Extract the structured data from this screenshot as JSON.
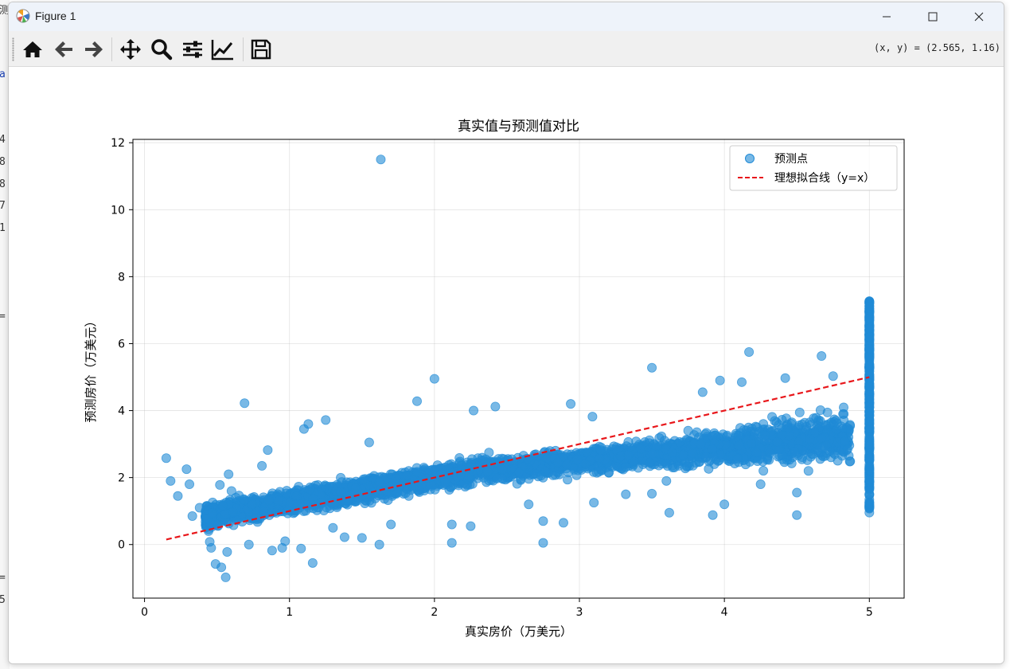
{
  "window": {
    "title": "Figure 1",
    "coords_readout": "(x, y) = (2.565, 1.16)"
  },
  "toolbar": {
    "tools": [
      "home-icon",
      "back-icon",
      "forward-icon",
      "pan-icon",
      "zoom-icon",
      "configure-subplots-icon",
      "edit-axis-icon",
      "save-icon"
    ]
  },
  "background_fragments": [
    "测",
    "a",
    "4",
    "8",
    "8",
    "7",
    "1",
    "=",
    "=",
    "5"
  ],
  "chart_data": {
    "type": "scatter",
    "title": "真实值与预测值对比",
    "xlabel": "真实房价（万美元）",
    "ylabel": "预测房价（万美元）",
    "xlim": [
      -0.08,
      5.24
    ],
    "ylim": [
      -1.6,
      12.1
    ],
    "xticks": [
      0,
      1,
      2,
      3,
      4,
      5
    ],
    "yticks": [
      0,
      2,
      4,
      6,
      8,
      10,
      12
    ],
    "grid": true,
    "legend_position": "top-right",
    "colors": {
      "points": "#1f8ad6",
      "ideal_line": "#e8161a"
    },
    "series": [
      {
        "name": "预测点",
        "type": "scatter",
        "points": [
          [
            0.15,
            2.58
          ],
          [
            0.18,
            1.9
          ],
          [
            0.23,
            1.45
          ],
          [
            0.29,
            2.25
          ],
          [
            0.31,
            1.8
          ],
          [
            0.33,
            0.85
          ],
          [
            0.38,
            1.1
          ],
          [
            0.45,
            0.08
          ],
          [
            0.46,
            -0.1
          ],
          [
            0.49,
            -0.58
          ],
          [
            0.53,
            -0.68
          ],
          [
            0.56,
            -0.98
          ],
          [
            0.57,
            -0.22
          ],
          [
            0.52,
            1.78
          ],
          [
            0.58,
            2.1
          ],
          [
            0.6,
            1.6
          ],
          [
            0.63,
            1.4
          ],
          [
            0.69,
            4.22
          ],
          [
            0.72,
            0.0
          ],
          [
            0.81,
            2.35
          ],
          [
            0.85,
            2.82
          ],
          [
            0.88,
            -0.18
          ],
          [
            0.95,
            -0.1
          ],
          [
            0.97,
            0.1
          ],
          [
            1.08,
            -0.12
          ],
          [
            1.1,
            3.45
          ],
          [
            1.13,
            3.6
          ],
          [
            1.16,
            -0.55
          ],
          [
            1.25,
            3.72
          ],
          [
            1.3,
            0.5
          ],
          [
            1.38,
            0.22
          ],
          [
            1.5,
            0.2
          ],
          [
            1.55,
            3.05
          ],
          [
            1.63,
            11.5
          ],
          [
            1.62,
            0.0
          ],
          [
            1.7,
            0.6
          ],
          [
            1.88,
            4.28
          ],
          [
            2.0,
            4.95
          ],
          [
            2.12,
            0.05
          ],
          [
            2.12,
            0.6
          ],
          [
            2.25,
            0.55
          ],
          [
            2.27,
            4.0
          ],
          [
            2.42,
            4.12
          ],
          [
            2.65,
            1.2
          ],
          [
            2.75,
            0.05
          ],
          [
            2.75,
            0.7
          ],
          [
            2.89,
            0.65
          ],
          [
            2.94,
            4.2
          ],
          [
            3.09,
            3.82
          ],
          [
            3.1,
            1.25
          ],
          [
            3.32,
            1.5
          ],
          [
            3.5,
            5.28
          ],
          [
            3.5,
            1.52
          ],
          [
            3.6,
            1.9
          ],
          [
            3.62,
            0.95
          ],
          [
            3.75,
            3.4
          ],
          [
            3.85,
            4.55
          ],
          [
            3.92,
            0.88
          ],
          [
            3.97,
            4.9
          ],
          [
            4.0,
            1.2
          ],
          [
            4.12,
            4.85
          ],
          [
            4.17,
            5.75
          ],
          [
            4.25,
            1.8
          ],
          [
            4.42,
            4.97
          ],
          [
            4.5,
            0.88
          ],
          [
            4.5,
            1.55
          ],
          [
            4.58,
            2.2
          ],
          [
            4.67,
            5.63
          ],
          [
            4.75,
            5.03
          ],
          [
            4.85,
            2.85
          ]
        ]
      },
      {
        "name": "理想拟合线（y=x）",
        "type": "line",
        "style": "dashed",
        "points": [
          [
            0.15,
            0.15
          ],
          [
            5.0,
            5.0
          ]
        ]
      }
    ]
  }
}
